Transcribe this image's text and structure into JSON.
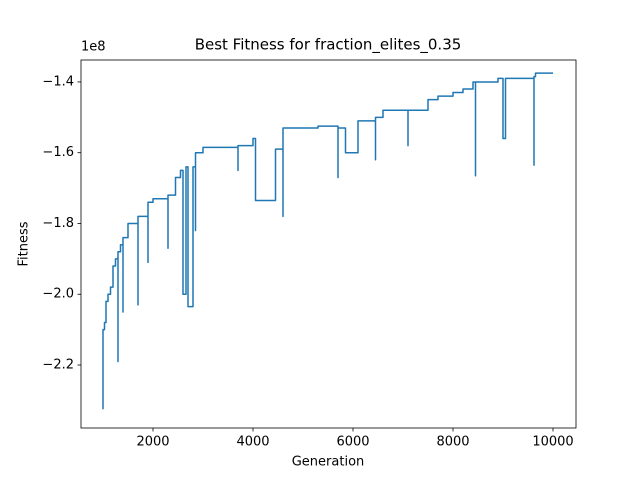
{
  "chart_data": {
    "type": "line",
    "title": "Best Fitness for fraction_elites_0.35",
    "x_label": "Generation",
    "y_label": "Fitness",
    "y_offset_label": "1e8",
    "xlim": [
      560,
      10460
    ],
    "ylim": [
      -2.378,
      -1.338
    ],
    "xticks": [
      2000,
      4000,
      6000,
      8000,
      10000
    ],
    "yticks": [
      {
        "value": -2.2,
        "label": "−2.2"
      },
      {
        "value": -2.0,
        "label": "−2.0"
      },
      {
        "value": -1.8,
        "label": "−1.8"
      },
      {
        "value": -1.6,
        "label": "−1.6"
      },
      {
        "value": -1.4,
        "label": "−1.4"
      }
    ],
    "series": [
      {
        "color": "#1f77b4",
        "x": [
          1000,
          1000,
          1030,
          1030,
          1060,
          1060,
          1100,
          1100,
          1150,
          1150,
          1200,
          1200,
          1250,
          1250,
          1300,
          1300,
          1300,
          1350,
          1350,
          1400,
          1400,
          1400,
          1500,
          1500,
          1700,
          1700,
          1700,
          1900,
          1900,
          1900,
          2000,
          2000,
          2300,
          2300,
          2300,
          2450,
          2450,
          2550,
          2550,
          2600,
          2600,
          2660,
          2660,
          2700,
          2700,
          2800,
          2800,
          2850,
          2850,
          2850,
          3000,
          3000,
          3700,
          3700,
          3700,
          4000,
          4000,
          4050,
          4050,
          4450,
          4450,
          4600,
          4600,
          4600,
          5300,
          5300,
          5700,
          5700,
          5700,
          5850,
          5850,
          6100,
          6100,
          6450,
          6450,
          6450,
          6600,
          6600,
          7100,
          7100,
          7100,
          7500,
          7500,
          7700,
          7700,
          8000,
          8000,
          8200,
          8200,
          8400,
          8400,
          8450,
          8450,
          8450,
          8900,
          8900,
          9000,
          9000,
          9050,
          9050,
          9620,
          9620,
          9620,
          9650,
          9650,
          10000
        ],
        "values": [
          -2.325,
          -2.1,
          -2.1,
          -2.08,
          -2.08,
          -2.02,
          -2.02,
          -2.0,
          -2.0,
          -1.98,
          -1.98,
          -1.92,
          -1.92,
          -1.9,
          -1.9,
          -2.19,
          -1.88,
          -1.88,
          -1.86,
          -1.86,
          -2.05,
          -1.84,
          -1.84,
          -1.8,
          -1.8,
          -2.03,
          -1.78,
          -1.78,
          -1.91,
          -1.74,
          -1.74,
          -1.73,
          -1.73,
          -1.87,
          -1.72,
          -1.72,
          -1.67,
          -1.67,
          -1.65,
          -1.65,
          -2.0,
          -2.0,
          -1.64,
          -1.64,
          -2.035,
          -2.035,
          -1.64,
          -1.64,
          -1.82,
          -1.6,
          -1.6,
          -1.585,
          -1.585,
          -1.65,
          -1.58,
          -1.58,
          -1.56,
          -1.56,
          -1.735,
          -1.735,
          -1.59,
          -1.59,
          -1.78,
          -1.53,
          -1.53,
          -1.525,
          -1.525,
          -1.67,
          -1.53,
          -1.53,
          -1.6,
          -1.6,
          -1.51,
          -1.51,
          -1.62,
          -1.5,
          -1.5,
          -1.48,
          -1.48,
          -1.58,
          -1.48,
          -1.48,
          -1.45,
          -1.45,
          -1.44,
          -1.44,
          -1.43,
          -1.43,
          -1.42,
          -1.42,
          -1.4,
          -1.4,
          -1.665,
          -1.4,
          -1.4,
          -1.39,
          -1.39,
          -1.56,
          -1.56,
          -1.39,
          -1.39,
          -1.635,
          -1.385,
          -1.385,
          -1.375,
          -1.375
        ]
      }
    ]
  }
}
